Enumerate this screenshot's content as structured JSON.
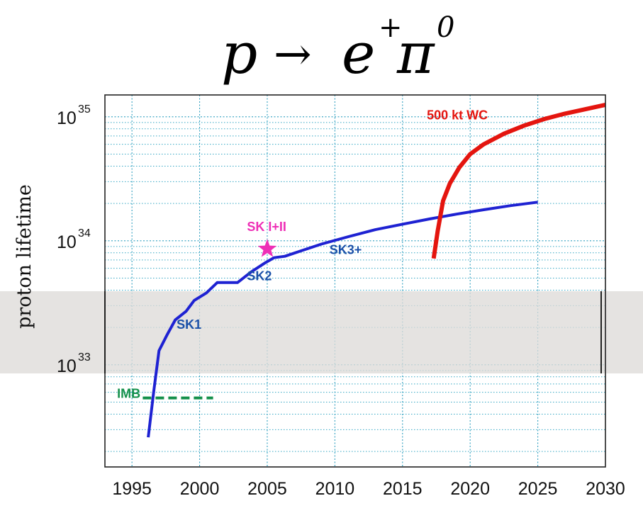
{
  "formula": {
    "base": "p",
    "arrow": "→",
    "e": "e",
    "e_sup": "+",
    "pi": "π",
    "pi_sup": "0"
  },
  "chart_data": {
    "type": "line",
    "title": "",
    "xlabel": "",
    "ylabel": "proton lifetime",
    "xlim": [
      1993,
      2030
    ],
    "ylim": [
      1.5e+32,
      1.5e+35
    ],
    "yscale": "log",
    "grid": true,
    "x_ticks": [
      "1995",
      "2000",
      "2005",
      "2010",
      "2015",
      "2020",
      "2025",
      "2030"
    ],
    "y_ticks": [
      {
        "base": "10",
        "exp": "33",
        "value": 1e+33
      },
      {
        "base": "10",
        "exp": "34",
        "value": 1e+34
      },
      {
        "base": "10",
        "exp": "35",
        "value": 1e+35
      }
    ],
    "series": [
      {
        "name": "SK",
        "color": "#1e22d2",
        "x": [
          1996.2,
          1996.6,
          1997.0,
          1997.6,
          1998.2,
          1999.0,
          1999.6,
          2000.5,
          2001.3,
          2002.0,
          2002.8,
          2003.8,
          2004.8,
          2005.5,
          2006.3,
          2007.5,
          2009.0,
          2011.0,
          2013.0,
          2015.0,
          2017.0,
          2019.0,
          2021.0,
          2023.0,
          2025.0
        ],
        "y": [
          2.6e+32,
          6e+32,
          1.3e+33,
          1.75e+33,
          2.3e+33,
          2.7e+33,
          3.3e+33,
          3.8e+33,
          4.6e+33,
          4.6e+33,
          4.6e+33,
          5.6e+33,
          6.6e+33,
          7.3e+33,
          7.5e+33,
          8.3e+33,
          9.4e+33,
          1.08e+34,
          1.23e+34,
          1.36e+34,
          1.5e+34,
          1.64e+34,
          1.78e+34,
          1.92e+34,
          2.05e+34
        ]
      },
      {
        "name": "500 kt WC",
        "color": "#e4150f",
        "x": [
          2017.3,
          2017.6,
          2018.0,
          2018.5,
          2019.2,
          2020.0,
          2021.0,
          2022.5,
          2024.0,
          2025.5,
          2027.0,
          2028.5,
          2030.0
        ],
        "y": [
          7.2e+33,
          1.2e+34,
          2.1e+34,
          2.9e+34,
          3.9e+34,
          5e+34,
          6e+34,
          7.3e+34,
          8.5e+34,
          9.6e+34,
          1.06e+35,
          1.15e+35,
          1.25e+35
        ]
      },
      {
        "name": "IMB",
        "color": "#13904a",
        "dashed": true,
        "x": [
          1995.8,
          2001.0
        ],
        "y": [
          5.4e+32,
          5.4e+32
        ]
      }
    ],
    "points": [
      {
        "name": "SK I+II",
        "x": 2005.0,
        "y": 8.6e+33,
        "color": "#ee2fb6",
        "marker": "star"
      }
    ],
    "annotations": [
      {
        "text": "500 kt WC",
        "x": 2016.8,
        "y": 9.5e+34,
        "color": "#e4150f"
      },
      {
        "text": "SK I+II",
        "x": 2003.5,
        "y": 1.2e+34,
        "color": "#ee2fb6"
      },
      {
        "text": "SK3+",
        "x": 2009.6,
        "y": 7.8e+33,
        "color": "#1a50a8"
      },
      {
        "text": "SK2",
        "x": 2003.5,
        "y": 4.8e+33,
        "color": "#1a50a8"
      },
      {
        "text": "SK1",
        "x": 1998.3,
        "y": 1.95e+33,
        "color": "#1a50a8"
      },
      {
        "text": "IMB",
        "x": 1993.9,
        "y": 5.4e+32,
        "color": "#13904a"
      }
    ]
  }
}
